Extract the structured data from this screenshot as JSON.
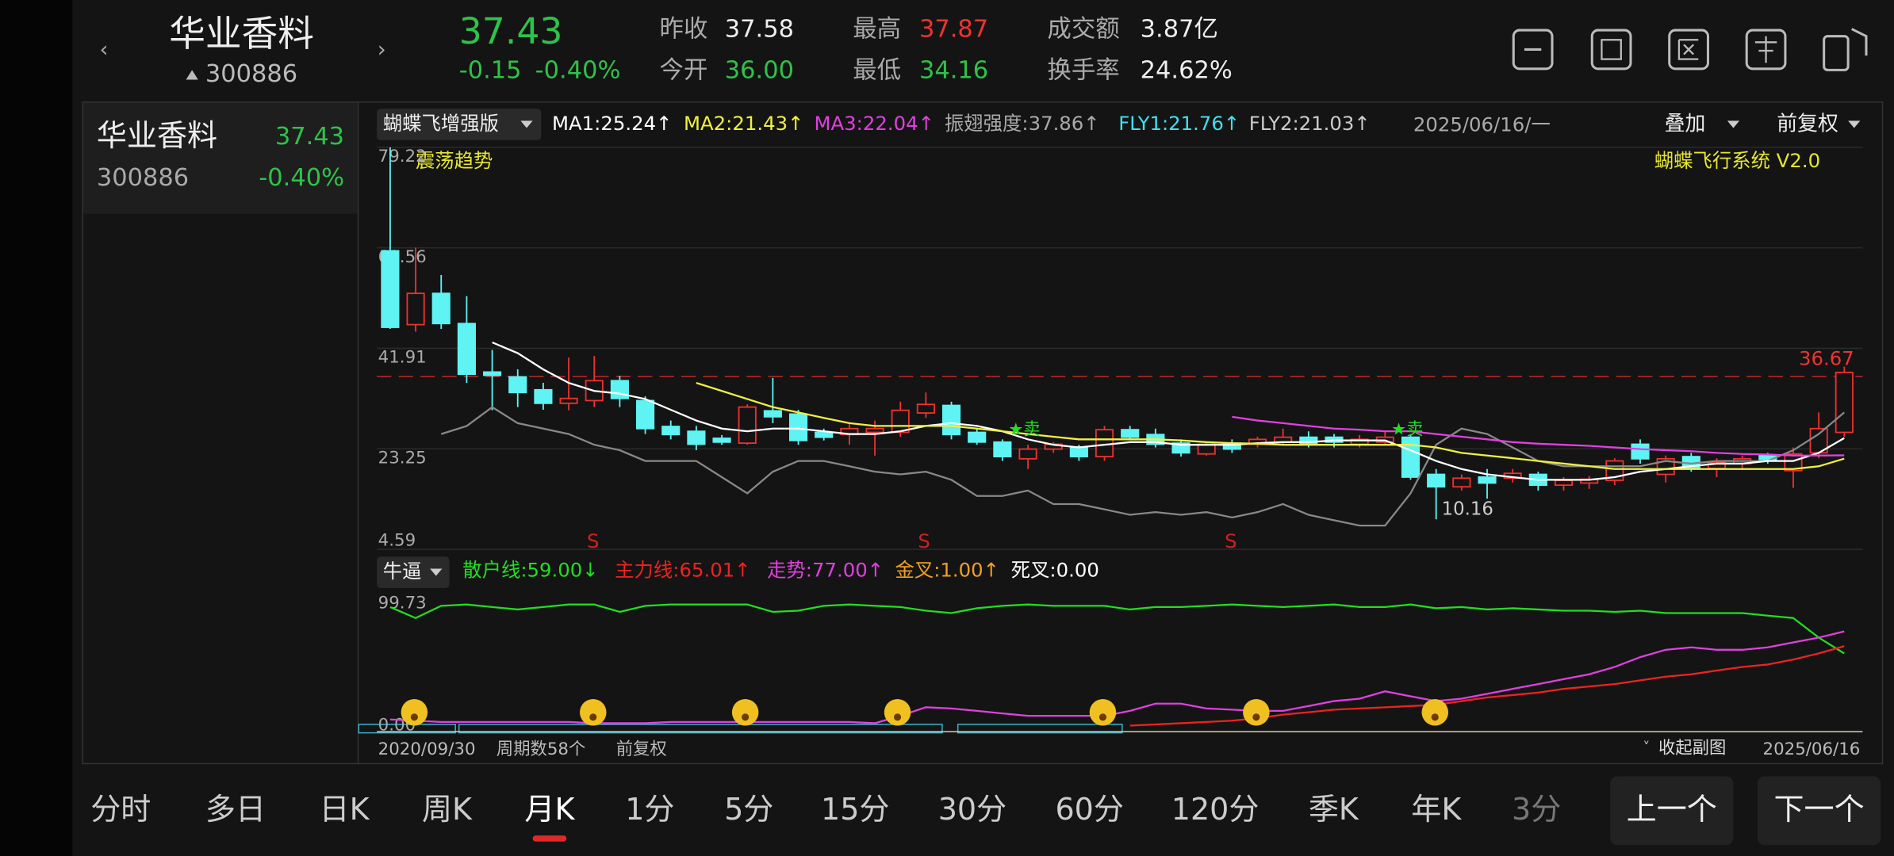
{
  "header": {
    "name": "华业香料",
    "code": "300886",
    "price": "37.43",
    "change": "-0.15",
    "change_pct": "-0.40%",
    "stats": [
      {
        "label": "昨收",
        "value": "37.58"
      },
      {
        "label": "今开",
        "value": "36.00"
      },
      {
        "label": "最高",
        "value": "37.87"
      },
      {
        "label": "最低",
        "value": "34.16"
      },
      {
        "label": "成交额",
        "value": "3.87亿"
      },
      {
        "label": "换手率",
        "value": "24.62%"
      }
    ]
  },
  "watchlist": [
    {
      "name": "华业香料",
      "price": "37.43",
      "code": "300886",
      "change_pct": "-0.40%"
    }
  ],
  "main_chart": {
    "indicator": "蝴蝶飞增强版",
    "date": "2025/06/16/一",
    "overlay": "叠加",
    "adjust": "前复权",
    "legend": [
      {
        "text": "MA1:25.24↑",
        "color": "#ffffff"
      },
      {
        "text": "MA2:21.43↑",
        "color": "#f0f040"
      },
      {
        "text": "MA3:22.04↑",
        "color": "#e040e0"
      },
      {
        "text": "振翅强度:37.86↑",
        "color": "#aaaaaa"
      },
      {
        "text": "FLY1:21.76↑",
        "color": "#40e0f0"
      },
      {
        "text": "FLY2:21.03↑",
        "color": "#cccccc"
      }
    ],
    "trend_label": "震荡趋势",
    "system_label": "蝴蝶飞行系统 V2.0",
    "sell_marks": [
      "S",
      "S",
      "S"
    ],
    "tags": [
      "★卖",
      "★卖"
    ],
    "ylim": [
      4.59,
      79.22
    ],
    "yticks": [
      79.22,
      60.56,
      41.91,
      23.25,
      4.59
    ],
    "marker_price": 36.67,
    "low_label": 10.16,
    "candles": [
      [
        60,
        79.22,
        45.5,
        45.8
      ],
      [
        46.3,
        60.6,
        45,
        52.1
      ],
      [
        52.1,
        55.5,
        45.5,
        46.5
      ],
      [
        46.5,
        51.6,
        35.5,
        37.1
      ],
      [
        37.5,
        41.6,
        30.4,
        36.9
      ],
      [
        36.6,
        38,
        31,
        33.7
      ],
      [
        34.2,
        35.5,
        30.5,
        31.7
      ],
      [
        31.7,
        40.2,
        30.4,
        32.6
      ],
      [
        32.2,
        40.5,
        31,
        35.9
      ],
      [
        35.9,
        36.8,
        31,
        32.6
      ],
      [
        32.2,
        33,
        26,
        27
      ],
      [
        27.4,
        28.5,
        25,
        25.9
      ],
      [
        26.5,
        27.5,
        23,
        24.1
      ],
      [
        25.2,
        25.8,
        24,
        24.5
      ],
      [
        24.3,
        31.5,
        24,
        31
      ],
      [
        30.3,
        36.4,
        28,
        29.2
      ],
      [
        29.7,
        30.5,
        24,
        24.8
      ],
      [
        26.3,
        27,
        24.8,
        25.4
      ],
      [
        25.9,
        28,
        24,
        27
      ],
      [
        26.3,
        28.5,
        22,
        27
      ],
      [
        26.3,
        32,
        25.5,
        30.4
      ],
      [
        29.9,
        33.7,
        29,
        31.5
      ],
      [
        31.3,
        32,
        25,
        25.9
      ],
      [
        26.3,
        27,
        24,
        24.5
      ],
      [
        24.5,
        25,
        21,
        21.8
      ],
      [
        21.4,
        24,
        19.5,
        23.2
      ],
      [
        23.2,
        24.5,
        22.5,
        24.1
      ],
      [
        23.6,
        24,
        21,
        21.8
      ],
      [
        21.8,
        27.5,
        21,
        26.8
      ],
      [
        26.8,
        27.5,
        25,
        25.4
      ],
      [
        25.9,
        27,
        23.5,
        24.1
      ],
      [
        24.3,
        25,
        21.8,
        22.5
      ],
      [
        22.3,
        24.5,
        22,
        24.1
      ],
      [
        24.3,
        25,
        22.5,
        23.2
      ],
      [
        24.1,
        25.5,
        23.5,
        25
      ],
      [
        24.5,
        27,
        24,
        25.4
      ],
      [
        25.4,
        26.5,
        23.5,
        24.3
      ],
      [
        25.4,
        26,
        23.5,
        24.5
      ],
      [
        24.1,
        25.8,
        23.5,
        25
      ],
      [
        24.5,
        26.5,
        24,
        25.4
      ],
      [
        25.4,
        26,
        17.5,
        18
      ],
      [
        18.5,
        19.5,
        10.16,
        16.2
      ],
      [
        16.2,
        18.5,
        15.5,
        17.8
      ],
      [
        18,
        19.5,
        14,
        16.9
      ],
      [
        17.8,
        19.5,
        17,
        18.7
      ],
      [
        18.5,
        19,
        15.5,
        16.5
      ],
      [
        16.5,
        18,
        15.5,
        17.4
      ],
      [
        16.9,
        18.2,
        15.8,
        17.6
      ],
      [
        17.4,
        21.5,
        16.5,
        21
      ],
      [
        24.1,
        25,
        20.5,
        21.4
      ],
      [
        18.5,
        22,
        17,
        21.4
      ],
      [
        21.8,
        22.5,
        19,
        19.6
      ],
      [
        19.6,
        21.5,
        18,
        20.7
      ],
      [
        20.5,
        22,
        19.5,
        21.4
      ],
      [
        22,
        22.5,
        20.5,
        21
      ],
      [
        19.2,
        23.5,
        16,
        22.3
      ],
      [
        22.5,
        30,
        21.5,
        27
      ],
      [
        26.3,
        38.5,
        25.5,
        37.43
      ]
    ],
    "lines": [
      {
        "color": "#888888",
        "values": [
          null,
          null,
          26,
          27.5,
          31,
          28,
          27,
          26,
          24,
          23,
          21,
          21,
          21,
          18,
          15,
          19,
          21,
          21,
          20,
          19,
          18.5,
          19,
          17.5,
          14.5,
          14.5,
          15.5,
          13,
          13,
          12,
          11,
          11.5,
          11,
          11.5,
          10.5,
          11.5,
          13,
          11,
          10,
          9,
          9,
          15,
          24,
          27,
          26,
          23.5,
          21,
          20,
          20,
          20,
          20,
          21,
          20.5,
          21,
          21,
          21,
          23,
          26,
          30
        ]
      },
      {
        "color": "#ffffff",
        "values": [
          null,
          null,
          null,
          null,
          43,
          41,
          38,
          35.5,
          34,
          33.5,
          32.5,
          30.5,
          28.5,
          27,
          26.5,
          27,
          27,
          26.5,
          26,
          26,
          26.5,
          27.5,
          28,
          27.5,
          26.5,
          25,
          24,
          23.5,
          24,
          24.5,
          24.5,
          24,
          24,
          24,
          24.3,
          24.5,
          24.5,
          24.8,
          24.8,
          24.8,
          23,
          21,
          19.5,
          18.5,
          18,
          17.5,
          17.5,
          17.5,
          18,
          19,
          19.5,
          20,
          20.5,
          20.5,
          21,
          21,
          22.5,
          25.24
        ]
      },
      {
        "color": "#f0f040",
        "values": [
          null,
          null,
          null,
          null,
          null,
          null,
          null,
          null,
          null,
          null,
          null,
          null,
          35.5,
          34,
          32.5,
          31,
          30,
          29,
          28,
          27.5,
          27.5,
          27.5,
          27.5,
          27,
          26.5,
          26,
          25.5,
          25,
          25,
          25,
          25,
          24.8,
          24.5,
          24.3,
          24.2,
          24,
          24,
          24,
          24,
          24,
          24,
          23.5,
          22.5,
          22,
          21.5,
          21,
          20.5,
          20,
          19.5,
          19.5,
          19.5,
          19.5,
          19.5,
          19.5,
          19.5,
          19.5,
          20,
          21.43
        ]
      },
      {
        "color": "#e040e0",
        "values": [
          null,
          null,
          null,
          null,
          null,
          null,
          null,
          null,
          null,
          null,
          null,
          null,
          null,
          null,
          null,
          null,
          null,
          null,
          null,
          null,
          null,
          null,
          null,
          null,
          null,
          null,
          null,
          null,
          null,
          null,
          null,
          null,
          null,
          29.2,
          28.5,
          28,
          27.5,
          27,
          26.8,
          26.5,
          26.5,
          26,
          25.5,
          25,
          24.5,
          24.2,
          24,
          23.8,
          23.5,
          23.2,
          23,
          22.8,
          22.5,
          22.3,
          22.2,
          22,
          22,
          22.04
        ]
      }
    ]
  },
  "sub_chart": {
    "indicator": "牛逼",
    "legend": [
      {
        "text": "散户线:59.00↓",
        "color": "#22dd22"
      },
      {
        "text": "主力线:65.01↑",
        "color": "#ee2222"
      },
      {
        "text": "走势:77.00↑",
        "color": "#e040e0"
      },
      {
        "text": "金叉:1.00↑",
        "color": "#f0a020"
      },
      {
        "text": "死叉:0.00",
        "color": "#ffffff"
      }
    ],
    "ylim": [
      0,
      99.73
    ],
    "yticks": [
      99.73,
      {
        "value": 0,
        "label": "0.00"
      }
    ],
    "lines": [
      {
        "color": "#22dd22",
        "values": [
          97,
          88,
          98,
          99,
          97,
          95,
          97,
          99,
          99,
          93,
          98,
          99,
          99,
          99,
          99,
          93,
          94,
          98,
          99,
          98,
          97,
          94,
          92,
          96,
          98,
          99,
          98,
          98,
          98,
          95,
          97,
          97,
          98,
          99,
          98,
          97,
          98,
          99,
          97,
          97,
          99,
          96,
          97,
          95,
          96,
          95,
          94,
          94,
          93,
          94,
          92,
          92,
          92,
          92,
          90,
          88,
          72,
          59.0
        ]
      },
      {
        "color": "#e040e0",
        "values": [
          5,
          4,
          3,
          3,
          3,
          3,
          3,
          3,
          2,
          2,
          2,
          3,
          3,
          3,
          3,
          3,
          3,
          3,
          3,
          2,
          8,
          15,
          14,
          12,
          10,
          8,
          8,
          8,
          8,
          12,
          18,
          18,
          14,
          13,
          12,
          12,
          16,
          20,
          22,
          28,
          24,
          20,
          22,
          26,
          30,
          34,
          38,
          42,
          48,
          56,
          62,
          64,
          62,
          62,
          64,
          68,
          72,
          77.0
        ]
      },
      {
        "color": "#ee2222",
        "values": [
          null,
          null,
          null,
          null,
          null,
          null,
          null,
          null,
          null,
          null,
          null,
          null,
          null,
          null,
          null,
          null,
          null,
          null,
          null,
          null,
          null,
          null,
          null,
          null,
          null,
          null,
          null,
          null,
          null,
          0,
          1,
          2,
          3,
          4,
          6,
          9,
          11,
          13,
          14,
          15,
          16,
          17,
          20,
          23,
          25,
          27,
          30,
          32,
          34,
          37,
          40,
          42,
          45,
          48,
          50,
          54,
          59,
          65.01
        ]
      }
    ]
  },
  "chart_footer": {
    "start_date": "2020/09/30",
    "period_count": "周期数58个",
    "adjust": "前复权",
    "collapse": "收起副图",
    "end_date": "2025/06/16"
  },
  "tabs": {
    "items": [
      "分时",
      "多日",
      "日K",
      "周K",
      "月K",
      "1分",
      "5分",
      "15分",
      "30分",
      "60分",
      "120分",
      "季K",
      "年K",
      "3分"
    ],
    "active": "月K"
  },
  "buttons": [
    "上一个",
    "下一个"
  ]
}
